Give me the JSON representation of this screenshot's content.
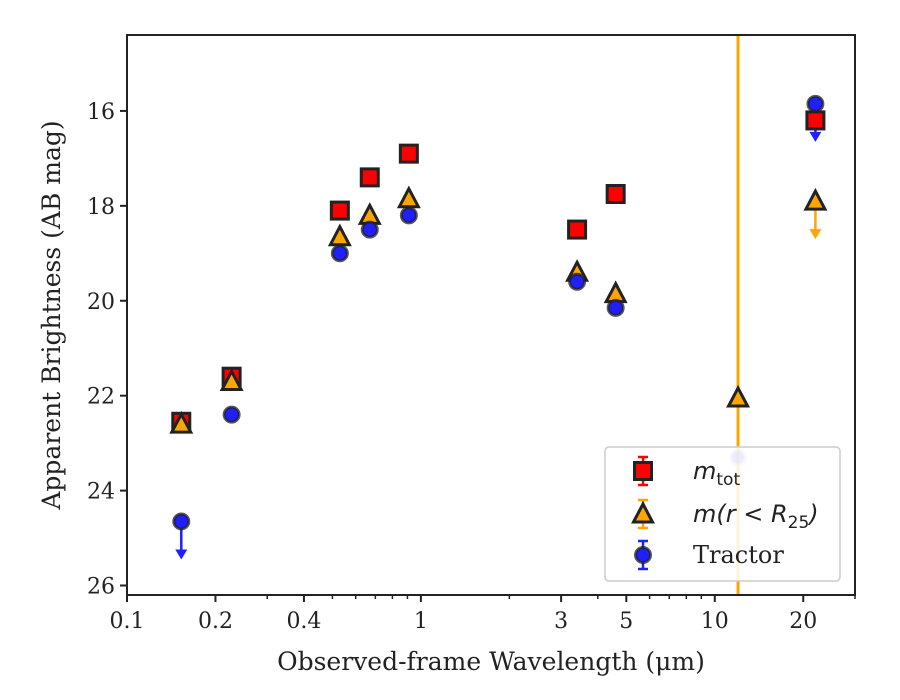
{
  "chart_data": {
    "type": "scatter",
    "title": "",
    "xlabel": "Observed-frame Wavelength (μm)",
    "ylabel": "Apparent Brightness (AB mag)",
    "xscale": "log",
    "xlim": [
      0.1,
      30
    ],
    "ylim": [
      26.2,
      14.4
    ],
    "y_inverted": true,
    "grid": false,
    "legend_position": "lower-right",
    "xticks": [
      {
        "value": 0.1,
        "label": "0.1"
      },
      {
        "value": 0.2,
        "label": "0.2"
      },
      {
        "value": 0.4,
        "label": "0.4"
      },
      {
        "value": 1,
        "label": "1"
      },
      {
        "value": 3,
        "label": "3"
      },
      {
        "value": 5,
        "label": "5"
      },
      {
        "value": 10,
        "label": "10"
      },
      {
        "value": 20,
        "label": "20"
      }
    ],
    "yticks": [
      {
        "value": 16,
        "label": "16"
      },
      {
        "value": 18,
        "label": "18"
      },
      {
        "value": 20,
        "label": "20"
      },
      {
        "value": 22,
        "label": "22"
      },
      {
        "value": 24,
        "label": "24"
      },
      {
        "value": 26,
        "label": "26"
      }
    ],
    "legend": [
      {
        "label": "m_tot",
        "prefix": "m",
        "subscript": "tot"
      },
      {
        "label": "m(r < R_25)",
        "prefix": "m(r < R",
        "subscript": "25",
        "suffix": ")"
      },
      {
        "label": "Tractor"
      }
    ],
    "series": [
      {
        "name": "m_tot",
        "marker": "square",
        "color": "#ff0000",
        "edge_color": "#222222",
        "points": [
          {
            "x": 0.153,
            "y": 22.55,
            "err": 0.1
          },
          {
            "x": 0.227,
            "y": 21.6,
            "err": 0.1
          },
          {
            "x": 0.53,
            "y": 18.1
          },
          {
            "x": 0.67,
            "y": 17.4
          },
          {
            "x": 0.91,
            "y": 16.9
          },
          {
            "x": 3.4,
            "y": 18.5
          },
          {
            "x": 4.6,
            "y": 17.75
          },
          {
            "x": 22.0,
            "y": 16.2
          }
        ]
      },
      {
        "name": "m(r < R_25)",
        "marker": "triangle",
        "color": "#ffa500",
        "edge_color": "#222222",
        "points": [
          {
            "x": 0.153,
            "y": 22.6
          },
          {
            "x": 0.227,
            "y": 21.7
          },
          {
            "x": 0.53,
            "y": 18.65
          },
          {
            "x": 0.67,
            "y": 18.2
          },
          {
            "x": 0.91,
            "y": 17.85
          },
          {
            "x": 3.4,
            "y": 19.4
          },
          {
            "x": 4.6,
            "y": 19.85
          },
          {
            "x": 12.0,
            "y": 22.05,
            "err_low": 14.0,
            "err_high": 26.2
          },
          {
            "x": 22.0,
            "y": 17.9,
            "upper_limit": true
          }
        ]
      },
      {
        "name": "Tractor",
        "marker": "circle",
        "color": "#1f1fff",
        "edge_color": "#222222",
        "points": [
          {
            "x": 0.153,
            "y": 24.65,
            "upper_limit": true
          },
          {
            "x": 0.227,
            "y": 22.4
          },
          {
            "x": 0.53,
            "y": 19.0
          },
          {
            "x": 0.67,
            "y": 18.5
          },
          {
            "x": 0.91,
            "y": 18.2
          },
          {
            "x": 3.4,
            "y": 19.6
          },
          {
            "x": 4.6,
            "y": 20.15
          },
          {
            "x": 12.0,
            "y": 23.3,
            "faded": true
          },
          {
            "x": 22.0,
            "y": 15.85,
            "upper_limit": true
          }
        ]
      }
    ]
  }
}
